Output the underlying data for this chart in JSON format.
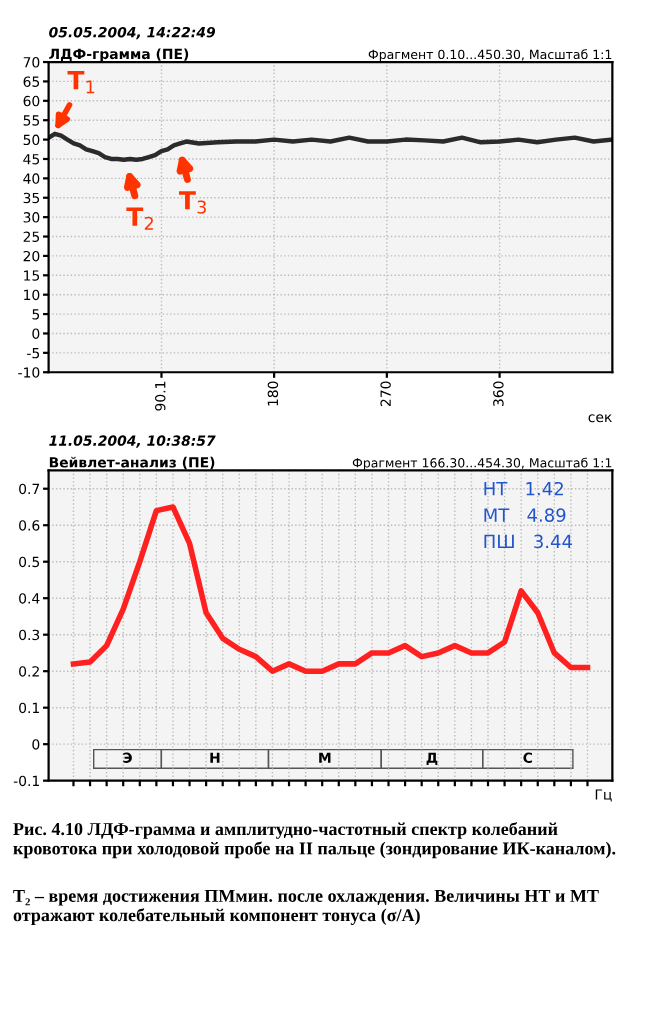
{
  "chart_data": [
    {
      "type": "line",
      "subtitle": "05.05.2004, 14:22:49",
      "title": "ЛДФ-грамма (ПЕ)",
      "xlabel": "сек",
      "x": [
        0,
        5,
        10,
        15,
        20,
        25,
        30,
        35,
        40,
        45,
        50,
        55,
        60,
        65,
        70,
        75,
        80,
        85,
        90,
        95,
        100,
        105,
        110,
        120,
        135,
        150,
        165,
        180,
        195,
        210,
        225,
        240,
        255,
        270,
        285,
        300,
        315,
        330,
        345,
        360,
        375,
        390,
        405,
        420,
        435,
        450
      ],
      "series": [
        {
          "color": "#2b2b2b",
          "values": [
            50.5,
            51.5,
            51,
            50,
            49,
            48.5,
            47.5,
            47,
            46.5,
            45.5,
            45,
            45,
            44.8,
            45,
            44.8,
            45,
            45.5,
            46,
            47,
            47.5,
            48.5,
            49,
            49.5,
            49,
            49.3,
            49.5,
            49.5,
            50,
            49.5,
            50,
            49.5,
            50.5,
            49.5,
            49.5,
            50,
            49.8,
            49.5,
            50.5,
            49.3,
            49.5,
            50,
            49.3,
            50,
            50.5,
            49.5,
            50
          ]
        }
      ],
      "xlim": [
        0,
        450
      ],
      "ylim": [
        -10,
        70
      ],
      "xticks": [
        90.1,
        180,
        270,
        360
      ],
      "yticks": [
        -10,
        -5,
        0,
        5,
        10,
        15,
        20,
        25,
        30,
        35,
        40,
        45,
        50,
        55,
        60,
        65,
        70
      ],
      "grid": true,
      "legend": false,
      "marker": "none",
      "line_style": "solid",
      "annotations": [
        "Фрагмент 0.10...450.30, Масштаб 1:1",
        {
          "text": "T$_{1}$",
          "x": 3,
          "y": 51
        },
        {
          "text": "T$_{2}$",
          "x": 62,
          "y": 44.8
        },
        {
          "text": "T$_{3}$",
          "x": 104,
          "y": 49
        }
      ]
    },
    {
      "type": "line",
      "subtitle": "11.05.2004, 10:38:57",
      "title": "Вейвлет-анализ (ПЕ)",
      "xlabel": "Гц",
      "categories": [
        null,
        null,
        null,
        null,
        null,
        null,
        null,
        null,
        null,
        null,
        null,
        null,
        null,
        null,
        null,
        null,
        null,
        null,
        null,
        null,
        null,
        null,
        null,
        null,
        null,
        null,
        null,
        null,
        null,
        null,
        null,
        null
      ],
      "series": [
        {
          "color": "#ff2020",
          "values": [
            0.22,
            0.225,
            0.27,
            0.37,
            0.5,
            0.64,
            0.65,
            0.55,
            0.36,
            0.29,
            0.26,
            0.24,
            0.2,
            0.22,
            0.2,
            0.2,
            0.22,
            0.22,
            0.25,
            0.25,
            0.27,
            0.24,
            0.25,
            0.27,
            0.25,
            0.25,
            0.28,
            0.42,
            0.36,
            0.25,
            0.21,
            0.21
          ]
        }
      ],
      "ylim": [
        -0.1,
        0.75
      ],
      "yticks": [
        {
          "value": -0.1,
          "label": "-0.1"
        },
        0,
        0.1,
        0.2,
        0.3,
        0.4,
        0.5,
        0.6,
        0.7
      ],
      "grid": true,
      "legend": false,
      "marker": "none",
      "line_style": "solid",
      "annotations": [
        "Фрагмент 166.30...454.30, Масштаб 1:1",
        "НТ   1.42",
        "МТ   4.89",
        "ПШ   3.44",
        "Э",
        "Н",
        "М",
        "Д",
        "С",
        "Рис. 4.10 ЛДФ-грамма и амплитудно-частотный спектр колебаний кровотока при холодовой пробе на II пальце (зондирование ИК-каналом).",
        "T₂ – время достижения ПМмин. после охлаждения. Величины НТ и МТ отражают колебательный компонент тонуса (σ/А)"
      ]
    }
  ]
}
